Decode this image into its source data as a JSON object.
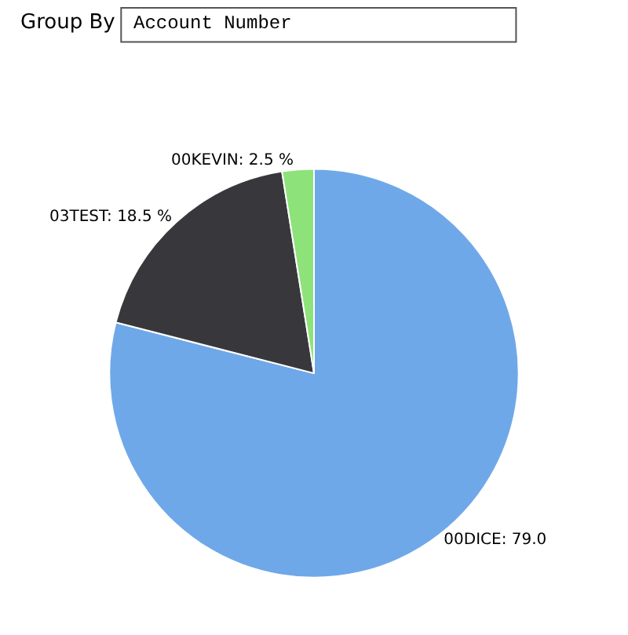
{
  "chart_data": {
    "type": "pie",
    "categories": [
      "00DICE",
      "03TEST",
      "00KEVIN"
    ],
    "values": [
      79.0,
      18.5,
      2.5
    ],
    "value_labels": [
      "79.0",
      "18.5 %",
      "2.5 %"
    ],
    "colors": [
      "#6fa8e8",
      "#38383c",
      "#8ee27a"
    ],
    "annotations": [
      "Group By",
      "Account Number"
    ],
    "legend": false
  }
}
